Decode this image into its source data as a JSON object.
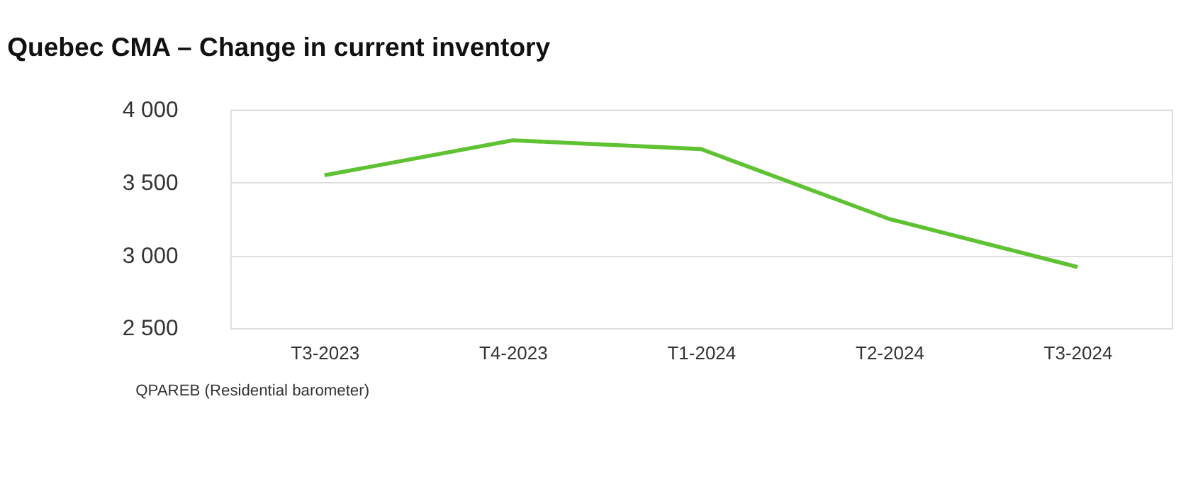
{
  "chart_data": {
    "type": "line",
    "title": "Quebec CMA – Change in current inventory",
    "categories": [
      "T3-2023",
      "T4-2023",
      "T1-2024",
      "T2-2024",
      "T3-2024"
    ],
    "series": [
      {
        "color": "#5ec232",
        "values": [
          3550,
          3790,
          3730,
          3250,
          2920
        ]
      }
    ],
    "ylim": [
      2500,
      4000
    ],
    "yticks": [
      {
        "value": 2500,
        "label": "2 500"
      },
      {
        "value": 3000,
        "label": "3 000"
      },
      {
        "value": 3500,
        "label": "3 500"
      },
      {
        "value": 4000,
        "label": "4 000"
      }
    ],
    "grid": "y",
    "marker": "none",
    "line_style": "solid",
    "annotations": [
      "QPAREB (Residential barometer)"
    ]
  }
}
